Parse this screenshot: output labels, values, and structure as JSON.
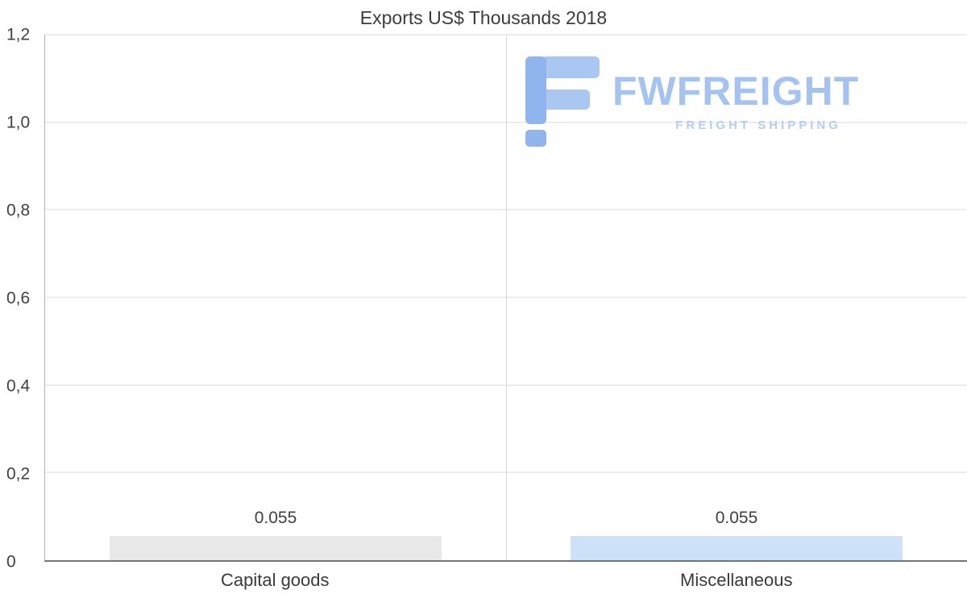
{
  "title": "Exports US$ Thousands 2018",
  "watermark": {
    "name": "FWFREIGHT",
    "tagline": "FREIGHT SHIPPING"
  },
  "chart_data": {
    "type": "bar",
    "title": "Exports US$ Thousands 2018",
    "categories": [
      "Capital goods",
      "Miscellaneous"
    ],
    "values": [
      0.055,
      0.055
    ],
    "value_labels": [
      "0.055",
      "0.055"
    ],
    "bar_colors": [
      "#e8e8e8",
      "#cde2f8"
    ],
    "xlabel": "",
    "ylabel": "",
    "ylim": [
      0,
      1.2
    ],
    "yticks": [
      0,
      0.2,
      0.4,
      0.6,
      0.8,
      1.0,
      1.2
    ],
    "ytick_labels": [
      "0",
      "0,2",
      "0,4",
      "0,6",
      "0,8",
      "1,0",
      "1,2"
    ],
    "grid": true,
    "legend": "none"
  },
  "colors": {
    "grid": "#d9d9d9",
    "axis": "#757575",
    "text": "#404040",
    "logo_main": "#a5c3f0",
    "logo_icon_dark": "#8fb4ee",
    "logo_icon_light": "#aac7f2"
  }
}
